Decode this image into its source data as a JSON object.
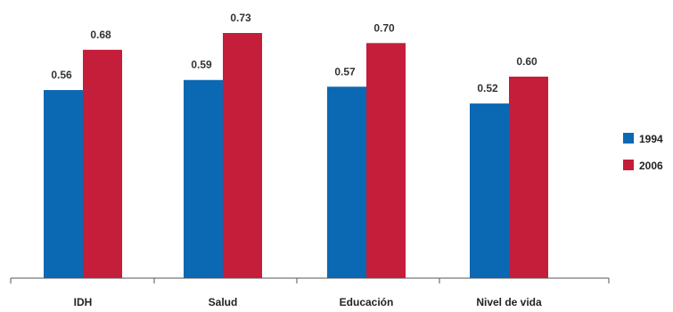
{
  "chart_data": {
    "type": "bar",
    "categories": [
      "IDH",
      "Salud",
      "Educación",
      "Nivel de vida"
    ],
    "series": [
      {
        "name": "1994",
        "color": "#0B68B3",
        "values": [
          0.56,
          0.59,
          0.57,
          0.52
        ]
      },
      {
        "name": "2006",
        "color": "#C41E3A",
        "values": [
          0.68,
          0.73,
          0.7,
          0.6
        ]
      }
    ],
    "value_labels": [
      [
        "0.56",
        "0.59",
        "0.57",
        "0.52"
      ],
      [
        "0.68",
        "0.73",
        "0.70",
        "0.60"
      ]
    ],
    "ylim": [
      0,
      0.73
    ],
    "legend": "right",
    "grid": false,
    "title": "",
    "xlabel": "",
    "ylabel": ""
  }
}
